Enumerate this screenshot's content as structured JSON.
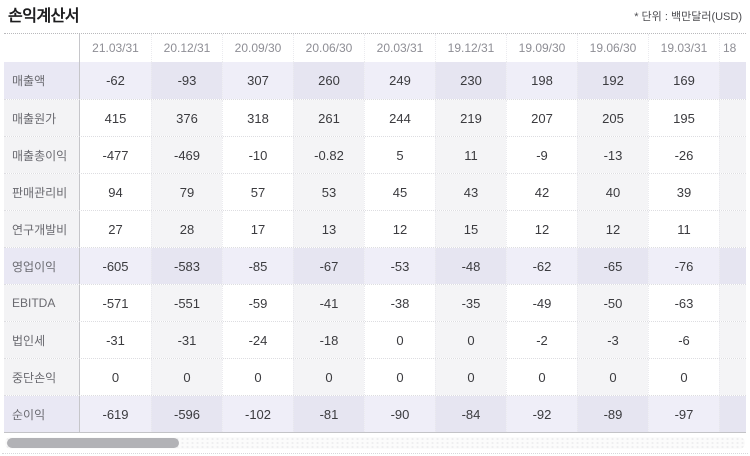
{
  "page": {
    "title": "손익계산서",
    "unit_note": "* 단위 : 백만달러(USD)"
  },
  "table": {
    "columns": [
      "21.03/31",
      "20.12/31",
      "20.09/30",
      "20.06/30",
      "20.03/31",
      "19.12/31",
      "19.09/30",
      "19.06/30",
      "19.03/31",
      "18"
    ],
    "rows": [
      {
        "label": "매출액",
        "highlight": true,
        "values": [
          "-62",
          "-93",
          "307",
          "260",
          "249",
          "230",
          "198",
          "192",
          "169"
        ]
      },
      {
        "label": "매출원가",
        "highlight": false,
        "values": [
          "415",
          "376",
          "318",
          "261",
          "244",
          "219",
          "207",
          "205",
          "195"
        ]
      },
      {
        "label": "매출총이익",
        "highlight": false,
        "values": [
          "-477",
          "-469",
          "-10",
          "-0.82",
          "5",
          "11",
          "-9",
          "-13",
          "-26"
        ]
      },
      {
        "label": "판매관리비",
        "highlight": false,
        "values": [
          "94",
          "79",
          "57",
          "53",
          "45",
          "43",
          "42",
          "40",
          "39"
        ]
      },
      {
        "label": "연구개발비",
        "highlight": false,
        "values": [
          "27",
          "28",
          "17",
          "13",
          "12",
          "15",
          "12",
          "12",
          "11"
        ]
      },
      {
        "label": "영업이익",
        "highlight": true,
        "values": [
          "-605",
          "-583",
          "-85",
          "-67",
          "-53",
          "-48",
          "-62",
          "-65",
          "-76"
        ]
      },
      {
        "label": "EBITDA",
        "highlight": false,
        "values": [
          "-571",
          "-551",
          "-59",
          "-41",
          "-38",
          "-35",
          "-49",
          "-50",
          "-63"
        ]
      },
      {
        "label": "법인세",
        "highlight": false,
        "values": [
          "-31",
          "-31",
          "-24",
          "-18",
          "0",
          "0",
          "-2",
          "-3",
          "-6"
        ]
      },
      {
        "label": "중단손익",
        "highlight": false,
        "values": [
          "0",
          "0",
          "0",
          "0",
          "0",
          "0",
          "0",
          "0",
          "0"
        ]
      },
      {
        "label": "순이익",
        "highlight": true,
        "values": [
          "-619",
          "-596",
          "-102",
          "-81",
          "-90",
          "-84",
          "-92",
          "-89",
          "-97"
        ]
      }
    ]
  },
  "scrollbar": {
    "orientation": "horizontal",
    "thumb_position": "left"
  },
  "colors": {
    "highlight_row_bg": "#efeef8",
    "highlight_row_stripe_bg": "#e6e5f1",
    "stripe_col_bg": "#f4f4f6",
    "label_col_bg": "#f3f3f5",
    "scrollbar_thumb": "#b2b2b6"
  }
}
